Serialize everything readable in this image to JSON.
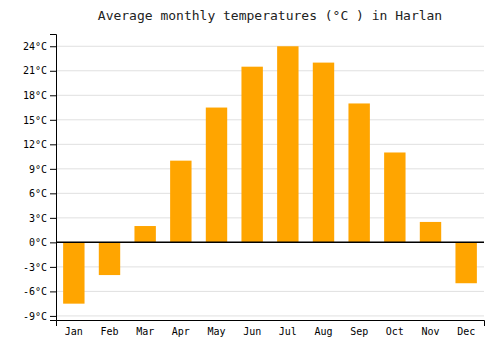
{
  "chart_data": {
    "type": "bar",
    "title": "Average monthly temperatures (°C ) in Harlan",
    "categories": [
      "Jan",
      "Feb",
      "Mar",
      "Apr",
      "May",
      "Jun",
      "Jul",
      "Aug",
      "Sep",
      "Oct",
      "Nov",
      "Dec"
    ],
    "values": [
      -7.5,
      -4.0,
      2.0,
      10.0,
      16.5,
      21.5,
      24.0,
      22.0,
      17.0,
      11.0,
      2.5,
      -5.0
    ],
    "color": "#FFA500",
    "ylim": [
      -9.5,
      25.5
    ],
    "yticks": [
      {
        "value": -9,
        "label": "-9°C"
      },
      {
        "value": -6,
        "label": "-6°C"
      },
      {
        "value": -3,
        "label": "-3°C"
      },
      {
        "value": 0,
        "label": "0°C"
      },
      {
        "value": 3,
        "label": "3°C"
      },
      {
        "value": 6,
        "label": "6°C"
      },
      {
        "value": 9,
        "label": "9°C"
      },
      {
        "value": 12,
        "label": "12°C"
      },
      {
        "value": 15,
        "label": "15°C"
      },
      {
        "value": 18,
        "label": "18°C"
      },
      {
        "value": 21,
        "label": "21°C"
      },
      {
        "value": 24,
        "label": "24°C"
      }
    ],
    "grid": true
  }
}
